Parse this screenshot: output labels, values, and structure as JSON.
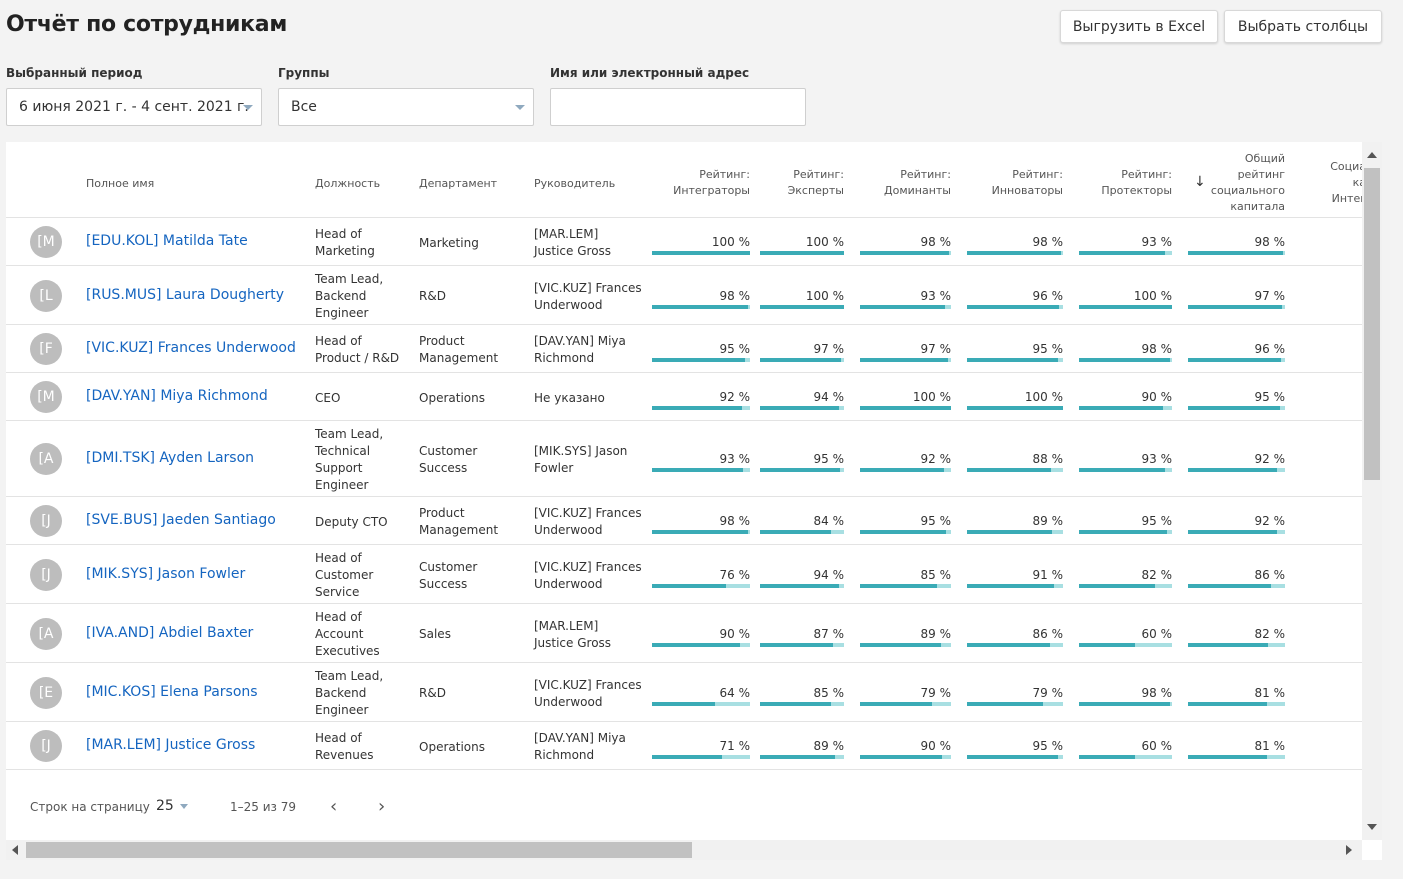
{
  "header": {
    "title": "Отчёт по сотрудникам",
    "export_label": "Выгрузить в Excel",
    "columns_label": "Выбрать столбцы"
  },
  "filters": {
    "period_label": "Выбранный период",
    "period_value": "6 июня 2021 г. - 4 сент. 2021 г.",
    "groups_label": "Группы",
    "groups_value": "Все",
    "search_label": "Имя или электронный адрес",
    "search_value": ""
  },
  "table": {
    "columns": {
      "name": "Полное имя",
      "position": "Должность",
      "department": "Департамент",
      "manager": "Руководитель",
      "r1": [
        "Рейтинг:",
        "Интеграторы"
      ],
      "r2": [
        "Рейтинг:",
        "Эксперты"
      ],
      "r3": [
        "Рейтинг:",
        "Доминанты"
      ],
      "r4": [
        "Рейтинг:",
        "Инноваторы"
      ],
      "r5": [
        "Рейтинг:",
        "Протекторы"
      ],
      "total": [
        "Общий",
        "рейтинг",
        "социального",
        "капитала"
      ],
      "social": [
        "Социа",
        "ка",
        "Интег"
      ],
      "sort_icon": "arrow-down-icon"
    },
    "rows": [
      {
        "initial": "[M",
        "name": "[EDU.KOL] Matilda Tate",
        "position": [
          "Head of",
          "Marketing"
        ],
        "department": [
          "Marketing"
        ],
        "manager": [
          "[MAR.LEM]",
          "Justice Gross"
        ],
        "ratings": [
          100,
          100,
          98,
          98,
          93,
          98
        ]
      },
      {
        "initial": "[L",
        "name": "[RUS.MUS] Laura Dougherty",
        "position": [
          "Team Lead,",
          "Backend",
          "Engineer"
        ],
        "department": [
          "R&D"
        ],
        "manager": [
          "[VIC.KUZ] Frances",
          "Underwood"
        ],
        "ratings": [
          98,
          100,
          93,
          96,
          100,
          97
        ]
      },
      {
        "initial": "[F",
        "name": "[VIC.KUZ] Frances Underwood",
        "position": [
          "Head of",
          "Product / R&D"
        ],
        "department": [
          "Product",
          "Management"
        ],
        "manager": [
          "[DAV.YAN] Miya",
          "Richmond"
        ],
        "ratings": [
          95,
          97,
          97,
          95,
          98,
          96
        ]
      },
      {
        "initial": "[M",
        "name": "[DAV.YAN] Miya Richmond",
        "position": [
          "CEO"
        ],
        "department": [
          "Operations"
        ],
        "manager": [
          "Не указано"
        ],
        "ratings": [
          92,
          94,
          100,
          100,
          90,
          95
        ]
      },
      {
        "initial": "[A",
        "name": "[DMI.TSK] Ayden Larson",
        "position": [
          "Team Lead,",
          "Technical",
          "Support",
          "Engineer"
        ],
        "department": [
          "Customer",
          "Success"
        ],
        "manager": [
          "[MIK.SYS] Jason",
          "Fowler"
        ],
        "ratings": [
          93,
          95,
          92,
          88,
          93,
          92
        ]
      },
      {
        "initial": "[J",
        "name": "[SVE.BUS] Jaeden Santiago",
        "position": [
          "Deputy CTO"
        ],
        "department": [
          "Product",
          "Management"
        ],
        "manager": [
          "[VIC.KUZ] Frances",
          "Underwood"
        ],
        "ratings": [
          98,
          84,
          95,
          89,
          95,
          92
        ]
      },
      {
        "initial": "[J",
        "name": "[MIK.SYS] Jason Fowler",
        "position": [
          "Head of",
          "Customer",
          "Service"
        ],
        "department": [
          "Customer",
          "Success"
        ],
        "manager": [
          "[VIC.KUZ] Frances",
          "Underwood"
        ],
        "ratings": [
          76,
          94,
          85,
          91,
          82,
          86
        ]
      },
      {
        "initial": "[A",
        "name": "[IVA.AND] Abdiel Baxter",
        "position": [
          "Head of",
          "Account",
          "Executives"
        ],
        "department": [
          "Sales"
        ],
        "manager": [
          "[MAR.LEM]",
          "Justice Gross"
        ],
        "ratings": [
          90,
          87,
          89,
          86,
          60,
          82
        ]
      },
      {
        "initial": "[E",
        "name": "[MIC.KOS] Elena Parsons",
        "position": [
          "Team Lead,",
          "Backend",
          "Engineer"
        ],
        "department": [
          "R&D"
        ],
        "manager": [
          "[VIC.KUZ] Frances",
          "Underwood"
        ],
        "ratings": [
          64,
          85,
          79,
          79,
          98,
          81
        ]
      },
      {
        "initial": "[J",
        "name": "[MAR.LEM] Justice Gross",
        "position": [
          "Head of",
          "Revenues"
        ],
        "department": [
          "Operations"
        ],
        "manager": [
          "[DAV.YAN] Miya",
          "Richmond"
        ],
        "ratings": [
          71,
          89,
          90,
          95,
          60,
          81
        ]
      }
    ],
    "percent_suffix": " %"
  },
  "pagination": {
    "rows_label": "Строк на страницу",
    "rows_value": "25",
    "range": "1–25 из 79",
    "prev_icon": "chevron-left-icon",
    "next_icon": "chevron-right-icon"
  },
  "colors": {
    "link": "#1565c0",
    "bar_fill": "#3aabb6",
    "bar_track": "#a8dfe2",
    "avatar": "#bdbdbd"
  }
}
